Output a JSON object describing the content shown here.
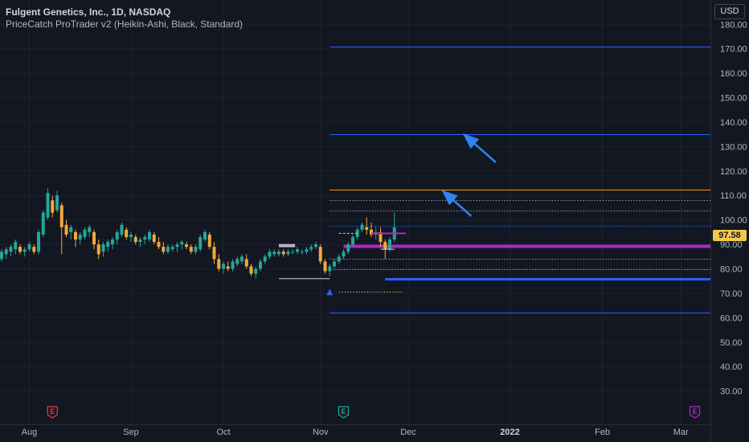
{
  "legend": {
    "title": "Fulgent Genetics, Inc., 1D, NASDAQ",
    "indicator": "PriceCatch ProTrader v2 (Heikin-Ashi, Black, Standard)"
  },
  "currency": "USD",
  "last_price": "97.58",
  "chart_data": {
    "type": "candlestick",
    "ylim": [
      22,
      186
    ],
    "y_ticks": [
      "180.00",
      "170.00",
      "160.00",
      "150.00",
      "140.00",
      "130.00",
      "120.00",
      "110.00",
      "100.00",
      "90.00",
      "80.00",
      "70.00",
      "60.00",
      "50.00",
      "40.00",
      "30.00"
    ],
    "x_ticks": [
      {
        "label": "Aug",
        "bar": 6,
        "bold": false
      },
      {
        "label": "Sep",
        "bar": 28,
        "bold": false
      },
      {
        "label": "Oct",
        "bar": 48,
        "bold": false
      },
      {
        "label": "Nov",
        "bar": 69,
        "bold": false
      },
      {
        "label": "Dec",
        "bar": 88,
        "bold": false
      },
      {
        "label": "2022",
        "bar": 110,
        "bold": true
      },
      {
        "label": "Feb",
        "bar": 130,
        "bold": false
      },
      {
        "label": "Mar",
        "bar": 147,
        "bold": false
      }
    ],
    "x_range": [
      0,
      155
    ],
    "earnings_markers": [
      {
        "bar": 11,
        "label": "E",
        "color": "#f23645"
      },
      {
        "bar": 74,
        "label": "E",
        "color": "#22ab94"
      },
      {
        "bar": 150,
        "label": "E",
        "color": "#b026c2"
      }
    ],
    "candles": [
      [
        84,
        88,
        83,
        87
      ],
      [
        86,
        89,
        84,
        88
      ],
      [
        87,
        90,
        85,
        89
      ],
      [
        88,
        92,
        86,
        91
      ],
      [
        89,
        90,
        86,
        87
      ],
      [
        87,
        89,
        85,
        88
      ],
      [
        88,
        91,
        87,
        90
      ],
      [
        89,
        90,
        86,
        87
      ],
      [
        87,
        96,
        86,
        95
      ],
      [
        94,
        104,
        93,
        103
      ],
      [
        101,
        113,
        100,
        111
      ],
      [
        108,
        110,
        101,
        103
      ],
      [
        104,
        112,
        103,
        110
      ],
      [
        106,
        107,
        86,
        97
      ],
      [
        98,
        100,
        93,
        94
      ],
      [
        95,
        98,
        92,
        97
      ],
      [
        95,
        96,
        89,
        92
      ],
      [
        92,
        95,
        90,
        94
      ],
      [
        93,
        97,
        92,
        96
      ],
      [
        95,
        98,
        93,
        97
      ],
      [
        95,
        96,
        88,
        90
      ],
      [
        90,
        92,
        84,
        86
      ],
      [
        87,
        91,
        85,
        90
      ],
      [
        89,
        92,
        87,
        91
      ],
      [
        90,
        93,
        88,
        92
      ],
      [
        92,
        96,
        90,
        95
      ],
      [
        94,
        99,
        93,
        98
      ],
      [
        96,
        97,
        92,
        93
      ],
      [
        93,
        95,
        91,
        94
      ],
      [
        93,
        94,
        90,
        91
      ],
      [
        91,
        93,
        89,
        92
      ],
      [
        92,
        94,
        90,
        93
      ],
      [
        92,
        96,
        91,
        95
      ],
      [
        94,
        95,
        90,
        91
      ],
      [
        91,
        93,
        88,
        89
      ],
      [
        89,
        91,
        86,
        87
      ],
      [
        87,
        90,
        86,
        89
      ],
      [
        88,
        90,
        87,
        89
      ],
      [
        89,
        91,
        87,
        90
      ],
      [
        90,
        92,
        88,
        91
      ],
      [
        90,
        91,
        88,
        89
      ],
      [
        89,
        90,
        86,
        87
      ],
      [
        87,
        90,
        86,
        89
      ],
      [
        88,
        94,
        87,
        93
      ],
      [
        92,
        96,
        91,
        95
      ],
      [
        94,
        95,
        88,
        89
      ],
      [
        89,
        91,
        82,
        84
      ],
      [
        84,
        86,
        79,
        80
      ],
      [
        80,
        83,
        78,
        82
      ],
      [
        81,
        83,
        79,
        80
      ],
      [
        80,
        84,
        79,
        83
      ],
      [
        82,
        85,
        81,
        84
      ],
      [
        83,
        86,
        82,
        85
      ],
      [
        84,
        86,
        80,
        81
      ],
      [
        81,
        82,
        77,
        78
      ],
      [
        78,
        81,
        76,
        80
      ],
      [
        80,
        84,
        79,
        83
      ],
      [
        83,
        86,
        82,
        85
      ],
      [
        85,
        88,
        84,
        87
      ],
      [
        86,
        88,
        85,
        87
      ],
      [
        86,
        88,
        85,
        87
      ],
      [
        87,
        88,
        85,
        86
      ],
      [
        86,
        88,
        85,
        87
      ],
      [
        87,
        88,
        86,
        87
      ],
      [
        87,
        89,
        86,
        88
      ],
      [
        87,
        88,
        86,
        87
      ],
      [
        87,
        89,
        86,
        88
      ],
      [
        88,
        90,
        87,
        89
      ],
      [
        89,
        91,
        88,
        90
      ],
      [
        89,
        90,
        82,
        83
      ],
      [
        83,
        84,
        78,
        79
      ],
      [
        79,
        82,
        77,
        81
      ],
      [
        81,
        84,
        80,
        83
      ],
      [
        83,
        86,
        82,
        85
      ],
      [
        85,
        88,
        84,
        87
      ],
      [
        87,
        91,
        86,
        90
      ],
      [
        90,
        94,
        89,
        93
      ],
      [
        93,
        97,
        92,
        96
      ],
      [
        96,
        99,
        95,
        98
      ],
      [
        97,
        101,
        94,
        96
      ],
      [
        96,
        99,
        93,
        94
      ],
      [
        94,
        97,
        92,
        95
      ],
      [
        95,
        97,
        89,
        91
      ],
      [
        91,
        92,
        84,
        88
      ],
      [
        88,
        93,
        87,
        92
      ],
      [
        92,
        103,
        91,
        97
      ]
    ],
    "levels": [
      {
        "price": 171,
        "from": 71,
        "color": "#2962ff",
        "style": "solid",
        "width": 1
      },
      {
        "price": 135,
        "from": 71,
        "color": "#2962ff",
        "style": "solid",
        "width": 1
      },
      {
        "price": 112.5,
        "from": 71,
        "color": "#ff9800",
        "style": "solid",
        "width": 1
      },
      {
        "price": 108,
        "from": 71,
        "color": "#9598a1",
        "style": "dotted",
        "width": 1
      },
      {
        "price": 104,
        "from": 71,
        "color": "#9598a1",
        "style": "dotted",
        "width": 1
      },
      {
        "price": 97.5,
        "from": 71,
        "color": "#2962ff",
        "style": "dotted",
        "width": 1
      },
      {
        "price": 89.5,
        "from": 74,
        "color": "#b026c2",
        "style": "solid",
        "width": 4
      },
      {
        "price": 84,
        "from": 71,
        "color": "#9598a1",
        "style": "dotted",
        "width": 1
      },
      {
        "price": 80,
        "from": 71,
        "color": "#ff9800",
        "style": "dotted",
        "width": 1
      },
      {
        "price": 76,
        "from": 83,
        "color": "#2962ff",
        "style": "solid",
        "width": 3
      },
      {
        "price": 62,
        "from": 71,
        "color": "#2962ff",
        "style": "solid",
        "width": 1
      }
    ]
  }
}
